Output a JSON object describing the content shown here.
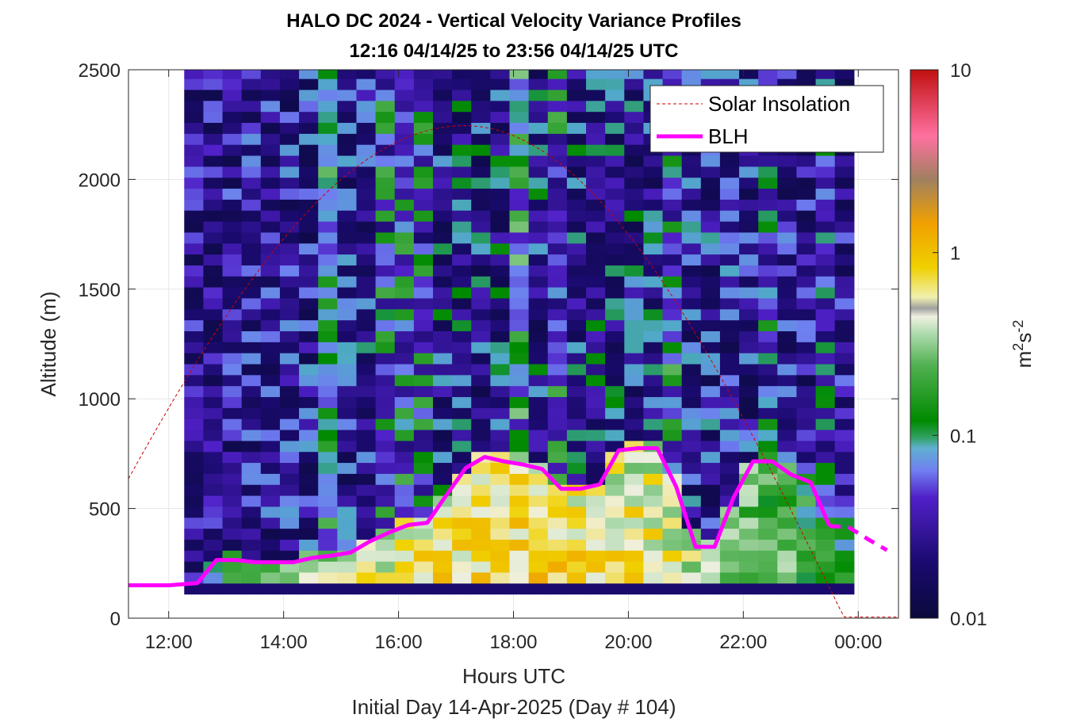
{
  "chart_data": {
    "type": "heatmap",
    "title_line1": "HALO DC 2024 - Vertical Velocity Variance Profiles",
    "title_line2": "12:16 04/14/25 to 23:56 04/14/25  UTC",
    "xlabel": "Hours UTC",
    "xlabel2": "Initial Day 14-Apr-2025 (Day # 104)",
    "ylabel": "Altitude (m)",
    "colorbar_label_base": "m",
    "colorbar_label_sup1": "2",
    "colorbar_label_mid": "s",
    "colorbar_label_sup2": "-2",
    "xlim": [
      11.3,
      24.7
    ],
    "ylim": [
      0,
      2500
    ],
    "x_ticks": [
      12,
      14,
      16,
      18,
      20,
      22,
      24
    ],
    "x_tick_labels": [
      "12:00",
      "14:00",
      "16:00",
      "18:00",
      "20:00",
      "22:00",
      "00:00"
    ],
    "y_ticks": [
      0,
      500,
      1000,
      1500,
      2000,
      2500
    ],
    "y_tick_labels": [
      "0",
      "500",
      "1000",
      "1500",
      "2000",
      "2500"
    ],
    "colorbar_scale": "log",
    "colorbar_range": [
      0.01,
      10
    ],
    "colorbar_ticks": [
      0.01,
      0.1,
      1,
      10
    ],
    "colorbar_tick_labels": [
      "0.01",
      "0.1",
      "1",
      "10"
    ],
    "grid": true,
    "legend_position": "top-right",
    "legend": [
      {
        "label": "Solar Insolation",
        "color": "#cc0000",
        "style": "dashed"
      },
      {
        "label": "BLH",
        "color": "#ff00ff",
        "style": "solid"
      }
    ],
    "blh": {
      "x": [
        11.3,
        12.0,
        12.5,
        12.83,
        13.17,
        13.5,
        13.83,
        14.17,
        14.5,
        14.83,
        15.17,
        15.5,
        15.83,
        16.17,
        16.5,
        16.83,
        17.17,
        17.5,
        17.83,
        18.17,
        18.5,
        18.83,
        19.17,
        19.5,
        19.83,
        20.17,
        20.5,
        20.83,
        21.17,
        21.5,
        21.83,
        22.17,
        22.5,
        22.83,
        23.17,
        23.5,
        23.83,
        24.17,
        24.5
      ],
      "y": [
        150,
        150,
        160,
        265,
        265,
        255,
        255,
        255,
        275,
        285,
        300,
        350,
        390,
        425,
        435,
        560,
        685,
        735,
        715,
        700,
        680,
        590,
        590,
        610,
        765,
        775,
        775,
        600,
        325,
        325,
        550,
        715,
        715,
        655,
        620,
        420,
        415,
        360,
        310
      ],
      "segments": [
        [
          0,
          35
        ],
        [
          35,
          38
        ]
      ]
    },
    "solar_insolation": {
      "x_start": 11.3,
      "x_end": 24.7,
      "peak_x": 17.15,
      "peak_y": 2245,
      "sunrise_x": 10.0,
      "sunset_x": 23.75,
      "night_y": 5
    },
    "heatmap": {
      "x_start": 12.27,
      "x_step": 0.333,
      "n_cols": 35,
      "y_start": 110,
      "y_step": 50,
      "n_rows": 48,
      "value_range_log10": [
        -2,
        1
      ],
      "pattern": "Green/white-yellow variance near the surface below the BLH (peaks about 0.5 m2s-2 between 16:00 and 18:00); purple/dark blue low variance aloft with vertical green streaks around 14:30, 16:00, 18:00 and 20:30"
    }
  }
}
